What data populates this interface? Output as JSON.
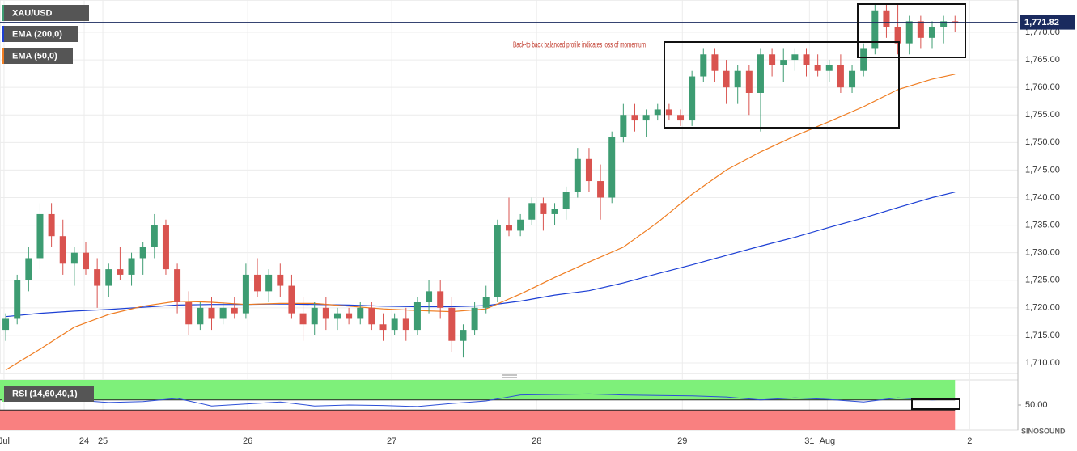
{
  "chart_data": [
    {
      "type": "candlestick",
      "title": "XAU/USD",
      "x": [
        0,
        1,
        2,
        3,
        4,
        5,
        6,
        7,
        8,
        9,
        10,
        11,
        12,
        13,
        14,
        15,
        16,
        17,
        18,
        19,
        20,
        21,
        22,
        23,
        24,
        25,
        26,
        27,
        28,
        29,
        30,
        31,
        32,
        33,
        34,
        35,
        36,
        37,
        38,
        39,
        40,
        41,
        42,
        43,
        44,
        45,
        46,
        47,
        48,
        49,
        50,
        51,
        52,
        53,
        54,
        55,
        56,
        57,
        58,
        59,
        60,
        61,
        62,
        63,
        64,
        65,
        66,
        67,
        68,
        69,
        70,
        71,
        72,
        73,
        74,
        75,
        76,
        77,
        78,
        79,
        80,
        81,
        82,
        83
      ],
      "open": [
        1716,
        1718,
        1725,
        1729,
        1737,
        1733,
        1728,
        1730,
        1727,
        1724,
        1727,
        1726,
        1729,
        1731,
        1735,
        1727,
        1721,
        1717,
        1720,
        1718,
        1720,
        1719,
        1726,
        1723,
        1726,
        1724,
        1719,
        1717,
        1720,
        1718,
        1719,
        1718,
        1720,
        1717,
        1716,
        1718,
        1716,
        1721,
        1723,
        1720,
        1714,
        1716,
        1720,
        1722,
        1735,
        1734,
        1736,
        1739,
        1737,
        1738,
        1741,
        1747,
        1743,
        1740,
        1751,
        1755,
        1754,
        1755,
        1756,
        1755,
        1754,
        1762,
        1766,
        1763,
        1760,
        1763,
        1759,
        1766,
        1764,
        1765,
        1766,
        1764,
        1763,
        1764,
        1760,
        1763,
        1767,
        1774,
        1771,
        1768,
        1772,
        1769,
        1771,
        1772
      ],
      "high": [
        1719,
        1726,
        1731,
        1739,
        1739,
        1736,
        1731,
        1732,
        1729,
        1728,
        1731,
        1730,
        1732,
        1737,
        1736,
        1728,
        1723,
        1721,
        1722,
        1721,
        1722,
        1728,
        1729,
        1727,
        1728,
        1726,
        1722,
        1721,
        1722,
        1720,
        1720,
        1721,
        1721,
        1719,
        1719,
        1720,
        1722,
        1725,
        1725,
        1722,
        1717,
        1721,
        1724,
        1736,
        1740,
        1737,
        1740,
        1740,
        1739,
        1742,
        1749,
        1749,
        1746,
        1752,
        1757,
        1757,
        1756,
        1757,
        1757,
        1756,
        1763,
        1767,
        1767,
        1765,
        1764,
        1764,
        1767,
        1767,
        1767,
        1767,
        1767,
        1766,
        1765,
        1766,
        1764,
        1768,
        1775,
        1775,
        1775,
        1773,
        1773,
        1772,
        1773,
        1773
      ],
      "low": [
        1714,
        1717,
        1723,
        1727,
        1731,
        1726,
        1724,
        1726,
        1720,
        1722,
        1725,
        1724,
        1726,
        1729,
        1726,
        1719,
        1715,
        1716,
        1716,
        1717,
        1718,
        1718,
        1722,
        1721,
        1722,
        1718,
        1714,
        1715,
        1716,
        1716,
        1717,
        1717,
        1716,
        1714,
        1715,
        1714,
        1715,
        1719,
        1718,
        1712,
        1711,
        1715,
        1719,
        1721,
        1733,
        1733,
        1735,
        1734,
        1735,
        1736,
        1740,
        1741,
        1736,
        1739,
        1750,
        1752,
        1751,
        1754,
        1754,
        1753,
        1753,
        1761,
        1761,
        1757,
        1757,
        1755,
        1752,
        1762,
        1761,
        1763,
        1762,
        1762,
        1761,
        1759,
        1759,
        1762,
        1766,
        1769,
        1766,
        1766,
        1767,
        1767,
        1768,
        1770
      ],
      "close": [
        1718,
        1725,
        1729,
        1737,
        1733,
        1728,
        1730,
        1727,
        1724,
        1727,
        1726,
        1729,
        1731,
        1735,
        1727,
        1721,
        1717,
        1720,
        1718,
        1720,
        1719,
        1726,
        1723,
        1726,
        1724,
        1719,
        1717,
        1720,
        1718,
        1719,
        1718,
        1720,
        1717,
        1716,
        1718,
        1716,
        1721,
        1723,
        1720,
        1714,
        1716,
        1720,
        1722,
        1735,
        1734,
        1736,
        1739,
        1737,
        1738,
        1741,
        1747,
        1743,
        1740,
        1751,
        1755,
        1754,
        1755,
        1756,
        1755,
        1754,
        1762,
        1766,
        1763,
        1760,
        1763,
        1759,
        1766,
        1764,
        1765,
        1766,
        1764,
        1763,
        1764,
        1760,
        1763,
        1767,
        1774,
        1771,
        1768,
        1772,
        1769,
        1771,
        1772,
        1771.82
      ],
      "up_color": "#3d9c72",
      "down_color": "#d9534f",
      "series": [
        {
          "name": "EMA (200,0)",
          "color": "#1c3fd4",
          "x": [
            0,
            3,
            6,
            9,
            12,
            15,
            18,
            21,
            24,
            27,
            30,
            33,
            36,
            39,
            42,
            45,
            48,
            51,
            54,
            57,
            60,
            63,
            66,
            69,
            72,
            75,
            78,
            81,
            83
          ],
          "values": [
            1718.4,
            1719,
            1719.4,
            1719.7,
            1720.1,
            1720.5,
            1720.6,
            1720.6,
            1720.7,
            1720.6,
            1720.5,
            1720.3,
            1720.2,
            1720.2,
            1720.4,
            1721.2,
            1722.3,
            1723.1,
            1724.5,
            1726.2,
            1727.8,
            1729.5,
            1731.2,
            1732.8,
            1734.6,
            1736.3,
            1738.2,
            1740,
            1741
          ]
        },
        {
          "name": "EMA (50,0)",
          "color": "#ef7d22",
          "x": [
            0,
            3,
            6,
            9,
            12,
            15,
            18,
            21,
            24,
            27,
            30,
            33,
            36,
            39,
            42,
            45,
            48,
            51,
            54,
            57,
            60,
            63,
            66,
            69,
            72,
            75,
            78,
            81,
            83
          ],
          "values": [
            1708.7,
            1712.5,
            1716.5,
            1718.8,
            1720.3,
            1721.2,
            1721,
            1720.6,
            1720.8,
            1720.8,
            1720.3,
            1719.8,
            1719.5,
            1719.3,
            1719.8,
            1722.5,
            1725.5,
            1728.3,
            1731,
            1735.5,
            1740.6,
            1745,
            1748.3,
            1751.2,
            1753.8,
            1756.5,
            1759.6,
            1761.5,
            1762.4
          ]
        }
      ],
      "xlim": [
        -0.5,
        88.5
      ],
      "ylim": [
        1708.09,
        1775.87
      ],
      "yticks": [
        {
          "value": 1710,
          "label": "1,710.00"
        },
        {
          "value": 1715,
          "label": "1,715.00"
        },
        {
          "value": 1720,
          "label": "1,720.00"
        },
        {
          "value": 1725,
          "label": "1,725.00"
        },
        {
          "value": 1730,
          "label": "1,730.00"
        },
        {
          "value": 1735,
          "label": "1,735.00"
        },
        {
          "value": 1740,
          "label": "1,740.00"
        },
        {
          "value": 1745,
          "label": "1,745.00"
        },
        {
          "value": 1750,
          "label": "1,750.00"
        },
        {
          "value": 1755,
          "label": "1,755.00"
        },
        {
          "value": 1760,
          "label": "1,760.00"
        },
        {
          "value": 1765,
          "label": "1,765.00"
        },
        {
          "value": 1770,
          "label": "1,770.00"
        }
      ],
      "xticks": [
        {
          "value": -0.15,
          "label": "Jul"
        },
        {
          "value": 6.86,
          "label": "24"
        },
        {
          "value": 8.49,
          "label": "25"
        },
        {
          "value": 21.16,
          "label": "26"
        },
        {
          "value": 33.75,
          "label": "27"
        },
        {
          "value": 46.42,
          "label": "28"
        },
        {
          "value": 59.16,
          "label": "29"
        },
        {
          "value": 70.27,
          "label": "31"
        },
        {
          "value": 71.83,
          "label": "Aug"
        },
        {
          "value": 84.28,
          "label": "2"
        }
      ],
      "last_price": {
        "value": 1771.82,
        "label": "1,771.82"
      },
      "annotation": "Back-to back  balanced profile  indicates loss of momentum",
      "grid": true
    },
    {
      "type": "line",
      "title": "RSI (14,60,40,1)",
      "x": [
        0,
        3,
        6,
        9,
        12,
        15,
        18,
        21,
        24,
        27,
        30,
        33,
        36,
        39,
        42,
        45,
        48,
        51,
        54,
        57,
        60,
        63,
        66,
        69,
        72,
        75,
        78,
        81,
        83
      ],
      "values": [
        58,
        65,
        60,
        55,
        57,
        63,
        48,
        52,
        56,
        48,
        50,
        49,
        47,
        53,
        58,
        70,
        71,
        72,
        70,
        69,
        68,
        66,
        60,
        64,
        61,
        56,
        64,
        60,
        62
      ],
      "color": "#2d4fd6",
      "xlim": [
        -0.5,
        88.5
      ],
      "ylim": [
        0,
        100
      ],
      "yticks": [
        {
          "value": 50,
          "label": "50.00"
        }
      ],
      "upper": 60,
      "lower": 40,
      "upper_color": "#7ef07a",
      "lower_color": "#f98080"
    }
  ],
  "watermark": "SINOSOUND"
}
